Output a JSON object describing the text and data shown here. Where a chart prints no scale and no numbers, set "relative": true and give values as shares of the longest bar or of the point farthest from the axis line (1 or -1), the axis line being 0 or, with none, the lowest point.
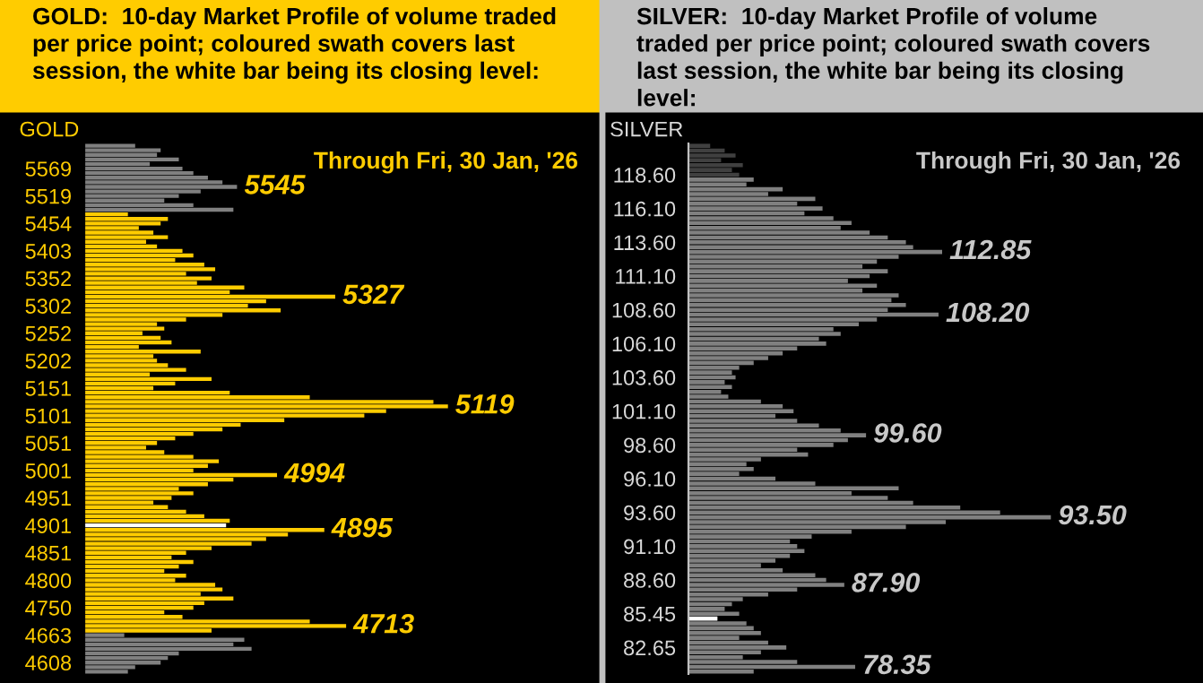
{
  "chart_data": [
    {
      "type": "bar",
      "orientation": "horizontal",
      "relative": true,
      "title": "GOLD:  10-day Market Profile of volume traded per price point; coloured swath covers last session, the white bar being its closing level:",
      "ylabel": "GOLD",
      "annotations": [
        "Through Fri, 30 Jan, '26",
        {
          "text": "5545",
          "x": 0.42
        },
        {
          "text": "5327",
          "x": 0.69
        },
        {
          "text": "5119",
          "x": 1
        },
        {
          "text": "4994",
          "x": 0.53
        },
        {
          "text": "4895",
          "x": 0.66
        },
        {
          "text": "4713",
          "x": 0.72
        }
      ],
      "categories": [
        null,
        null,
        null,
        null,
        null,
        "5569",
        null,
        null,
        null,
        null,
        null,
        "5519",
        null,
        null,
        null,
        null,
        null,
        "5454",
        null,
        null,
        null,
        null,
        null,
        "5403",
        null,
        null,
        null,
        null,
        null,
        "5352",
        null,
        null,
        null,
        null,
        null,
        "5302",
        null,
        null,
        null,
        null,
        null,
        "5252",
        null,
        null,
        null,
        null,
        null,
        "5202",
        null,
        null,
        null,
        null,
        null,
        "5151",
        null,
        null,
        null,
        null,
        null,
        "5101",
        null,
        null,
        null,
        null,
        null,
        "5051",
        null,
        null,
        null,
        null,
        null,
        "5001",
        null,
        null,
        null,
        null,
        null,
        "4951",
        null,
        null,
        null,
        null,
        null,
        "4901",
        null,
        null,
        null,
        null,
        null,
        "4851",
        null,
        null,
        null,
        null,
        null,
        "4800",
        null,
        null,
        null,
        null,
        null,
        "4750",
        null,
        null,
        null,
        null,
        null,
        "4663",
        null,
        null,
        null,
        null,
        null,
        "4608",
        null,
        null
      ],
      "values": [
        0.14,
        0.21,
        0.2,
        0.26,
        0.18,
        0.27,
        0.3,
        0.34,
        0.38,
        0.42,
        0.32,
        0.26,
        0.22,
        0.3,
        0.41,
        0.12,
        0.23,
        0.21,
        0.15,
        0.19,
        0.23,
        0.17,
        0.2,
        0.27,
        0.3,
        0.25,
        0.33,
        0.36,
        0.28,
        0.35,
        0.31,
        0.44,
        0.4,
        0.69,
        0.5,
        0.45,
        0.54,
        0.38,
        0.28,
        0.2,
        0.22,
        0.16,
        0.21,
        0.24,
        0.15,
        0.32,
        0.19,
        0.2,
        0.23,
        0.28,
        0.18,
        0.35,
        0.25,
        0.19,
        0.4,
        0.62,
        0.96,
        1,
        0.83,
        0.77,
        0.55,
        0.43,
        0.38,
        0.3,
        0.25,
        0.2,
        0.17,
        0.22,
        0.3,
        0.37,
        0.34,
        0.3,
        0.53,
        0.41,
        0.34,
        0.26,
        0.3,
        0.24,
        0.19,
        0.23,
        0.28,
        0.33,
        0.4,
        0.39,
        0.66,
        0.56,
        0.5,
        0.46,
        0.35,
        0.28,
        0.24,
        0.3,
        0.26,
        0.22,
        0.28,
        0.25,
        0.36,
        0.38,
        0.32,
        0.41,
        0.33,
        0.3,
        0.22,
        0.27,
        0.62,
        0.72,
        0.35,
        0.11,
        0.44,
        0.41,
        0.46,
        0.26,
        0.23,
        0.21,
        0.14,
        0.12
      ],
      "colors": [
        "#808080",
        "#808080",
        "#808080",
        "#808080",
        "#808080",
        "#808080",
        "#808080",
        "#808080",
        "#808080",
        "#808080",
        "#808080",
        "#808080",
        "#808080",
        "#808080",
        "#808080",
        "#ffcc00",
        "#ffcc00",
        "#ffcc00",
        "#ffcc00",
        "#ffcc00",
        "#ffcc00",
        "#ffcc00",
        "#ffcc00",
        "#ffcc00",
        "#ffcc00",
        "#ffcc00",
        "#ffcc00",
        "#ffcc00",
        "#ffcc00",
        "#ffcc00",
        "#ffcc00",
        "#ffcc00",
        "#ffcc00",
        "#ffcc00",
        "#ffcc00",
        "#ffcc00",
        "#ffcc00",
        "#ffcc00",
        "#ffcc00",
        "#ffcc00",
        "#ffcc00",
        "#ffcc00",
        "#ffcc00",
        "#ffcc00",
        "#ffcc00",
        "#ffcc00",
        "#ffcc00",
        "#ffcc00",
        "#ffcc00",
        "#ffcc00",
        "#ffcc00",
        "#ffcc00",
        "#ffcc00",
        "#ffcc00",
        "#ffcc00",
        "#ffcc00",
        "#ffcc00",
        "#ffcc00",
        "#ffcc00",
        "#ffcc00",
        "#ffcc00",
        "#ffcc00",
        "#ffcc00",
        "#ffcc00",
        "#ffcc00",
        "#ffcc00",
        "#ffcc00",
        "#ffcc00",
        "#ffcc00",
        "#ffcc00",
        "#ffcc00",
        "#ffcc00",
        "#ffcc00",
        "#ffcc00",
        "#ffcc00",
        "#ffcc00",
        "#ffcc00",
        "#ffcc00",
        "#ffcc00",
        "#ffcc00",
        "#ffcc00",
        "#ffcc00",
        "#ffcc00",
        "#ffffff",
        "#ffcc00",
        "#ffcc00",
        "#ffcc00",
        "#ffcc00",
        "#ffcc00",
        "#ffcc00",
        "#ffcc00",
        "#ffcc00",
        "#ffcc00",
        "#ffcc00",
        "#ffcc00",
        "#ffcc00",
        "#ffcc00",
        "#ffcc00",
        "#ffcc00",
        "#ffcc00",
        "#ffcc00",
        "#ffcc00",
        "#ffcc00",
        "#ffcc00",
        "#ffcc00",
        "#ffcc00",
        "#ffcc00",
        "#808080",
        "#808080",
        "#808080",
        "#808080",
        "#808080",
        "#808080",
        "#808080",
        "#808080",
        "#808080"
      ],
      "grid": false
    },
    {
      "type": "bar",
      "orientation": "horizontal",
      "relative": true,
      "title": "SILVER:  10-day Market Profile of volume traded per price point; coloured swath covers last session, the white bar being its closing level:",
      "ylabel": "SILVER",
      "annotations": [
        "Through Fri, 30 Jan, '26",
        {
          "text": "112.85",
          "x": 0.7
        },
        {
          "text": "108.20",
          "x": 0.69
        },
        {
          "text": "99.60",
          "x": 0.49
        },
        {
          "text": "93.50",
          "x": 1
        },
        {
          "text": "87.90",
          "x": 0.43
        },
        {
          "text": "78.35",
          "x": 0.46
        }
      ],
      "categories": [
        null,
        null,
        null,
        null,
        null,
        null,
        "118.60",
        null,
        null,
        null,
        null,
        null,
        null,
        "116.10",
        null,
        null,
        null,
        null,
        null,
        null,
        "113.60",
        null,
        null,
        null,
        null,
        null,
        null,
        "111.10",
        null,
        null,
        null,
        null,
        null,
        null,
        "108.60",
        null,
        null,
        null,
        null,
        null,
        null,
        "106.10",
        null,
        null,
        null,
        null,
        null,
        null,
        "103.60",
        null,
        null,
        null,
        null,
        null,
        null,
        "101.10",
        null,
        null,
        null,
        null,
        null,
        null,
        "98.60",
        null,
        null,
        null,
        null,
        null,
        null,
        "96.10",
        null,
        null,
        null,
        null,
        null,
        null,
        "93.60",
        null,
        null,
        null,
        null,
        null,
        null,
        "91.10",
        null,
        null,
        null,
        null,
        null,
        null,
        "88.60",
        null,
        null,
        null,
        null,
        null,
        null,
        "85.45",
        null,
        null,
        null,
        null,
        null,
        null,
        "82.65",
        null,
        null,
        null,
        null,
        null
      ],
      "values": [
        0.06,
        0.1,
        0.13,
        0.09,
        0.15,
        0.12,
        0.14,
        0.18,
        0.16,
        0.26,
        0.22,
        0.35,
        0.3,
        0.37,
        0.32,
        0.4,
        0.45,
        0.42,
        0.5,
        0.55,
        0.6,
        0.62,
        0.7,
        0.58,
        0.52,
        0.48,
        0.55,
        0.5,
        0.44,
        0.52,
        0.48,
        0.58,
        0.56,
        0.6,
        0.55,
        0.69,
        0.52,
        0.47,
        0.4,
        0.42,
        0.36,
        0.38,
        0.3,
        0.26,
        0.22,
        0.18,
        0.14,
        0.12,
        0.13,
        0.1,
        0.12,
        0.09,
        0.11,
        0.2,
        0.26,
        0.29,
        0.24,
        0.3,
        0.36,
        0.42,
        0.49,
        0.44,
        0.4,
        0.3,
        0.33,
        0.2,
        0.16,
        0.18,
        0.14,
        0.24,
        0.35,
        0.58,
        0.45,
        0.55,
        0.62,
        0.75,
        0.86,
        1,
        0.71,
        0.6,
        0.45,
        0.34,
        0.28,
        0.3,
        0.32,
        0.28,
        0.24,
        0.2,
        0.26,
        0.35,
        0.38,
        0.43,
        0.3,
        0.22,
        0.15,
        0.12,
        0.1,
        0.14,
        0.08,
        0.16,
        0.18,
        0.2,
        0.14,
        0.22,
        0.27,
        0.2,
        0.15,
        0.3,
        0.46,
        0.18
      ],
      "colors": [
        "#404040",
        "#404040",
        "#404040",
        "#404040",
        "#404040",
        "#404040",
        "#404040",
        "#808080",
        "#808080",
        "#808080",
        "#808080",
        "#808080",
        "#808080",
        "#808080",
        "#808080",
        "#808080",
        "#808080",
        "#808080",
        "#808080",
        "#808080",
        "#808080",
        "#808080",
        "#808080",
        "#808080",
        "#808080",
        "#808080",
        "#808080",
        "#808080",
        "#808080",
        "#808080",
        "#808080",
        "#808080",
        "#808080",
        "#808080",
        "#808080",
        "#808080",
        "#808080",
        "#808080",
        "#808080",
        "#808080",
        "#808080",
        "#808080",
        "#808080",
        "#808080",
        "#808080",
        "#808080",
        "#808080",
        "#808080",
        "#808080",
        "#808080",
        "#808080",
        "#808080",
        "#808080",
        "#808080",
        "#808080",
        "#808080",
        "#808080",
        "#808080",
        "#808080",
        "#808080",
        "#808080",
        "#808080",
        "#808080",
        "#808080",
        "#808080",
        "#808080",
        "#808080",
        "#808080",
        "#808080",
        "#808080",
        "#808080",
        "#808080",
        "#808080",
        "#808080",
        "#808080",
        "#808080",
        "#808080",
        "#808080",
        "#808080",
        "#808080",
        "#808080",
        "#808080",
        "#808080",
        "#808080",
        "#808080",
        "#808080",
        "#808080",
        "#808080",
        "#808080",
        "#808080",
        "#808080",
        "#808080",
        "#808080",
        "#808080",
        "#808080",
        "#808080",
        "#808080",
        "#808080",
        "#ffffff",
        "#808080",
        "#808080",
        "#808080",
        "#808080",
        "#808080",
        "#808080",
        "#808080",
        "#808080",
        "#808080",
        "#808080",
        "#808080"
      ],
      "grid": false
    }
  ]
}
